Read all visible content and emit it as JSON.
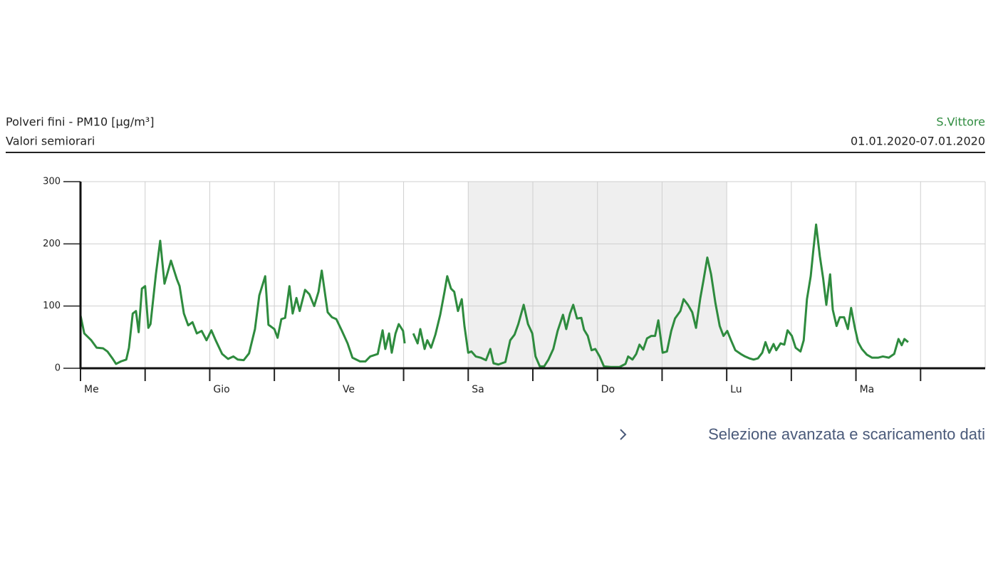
{
  "chart_data": {
    "type": "line",
    "title": "Polveri fini - PM10 [µg/m³]",
    "subtitle": "Valori semiorari",
    "station": "S.Vittore",
    "period": "01.01.2020-07.01.2020",
    "xlim": [
      0,
      168
    ],
    "xticks": [
      {
        "value": 0,
        "label": "Me"
      },
      {
        "value": 24,
        "label": "Gio"
      },
      {
        "value": 48,
        "label": "Ve"
      },
      {
        "value": 72,
        "label": "Sa"
      },
      {
        "value": 96,
        "label": "Do"
      },
      {
        "value": 120,
        "label": "Lu"
      },
      {
        "value": 144,
        "label": "Ma"
      }
    ],
    "xminor_ticks": [
      12,
      36,
      60,
      84,
      108,
      132,
      156
    ],
    "ylim": [
      0,
      300
    ],
    "yticks": [
      0,
      100,
      200,
      300
    ],
    "grid": true,
    "shaded_range": [
      72,
      120
    ],
    "series": [
      {
        "color": "#2e8b3e",
        "x": [
          0,
          0.7,
          2,
          3,
          4.2,
          5,
          6,
          6.6,
          7.5,
          8.5,
          9,
          9.7,
          10.3,
          10.8,
          11.4,
          12,
          12.6,
          13,
          14,
          14.8,
          15.6,
          16.8,
          17.9,
          18.4,
          19.2,
          20,
          20.8,
          21.6,
          22.5,
          23.4,
          24.3,
          25.1,
          26.3,
          27.4,
          28.4,
          29.2,
          30.3,
          31.3,
          32.4,
          33.2,
          34.3,
          34.9,
          36,
          36.6,
          37.3,
          38,
          38.8,
          39.4,
          40.1,
          40.7,
          41.7,
          42.5,
          43.4,
          44.2,
          44.8,
          45.9,
          46.7,
          47.5,
          48.5,
          49.6,
          50.5,
          51.9,
          52.9,
          53.8,
          55.2,
          56.1,
          56.6,
          57.3,
          57.8,
          58.5,
          59.1,
          59.9,
          60.2,
          61,
          61.8,
          62.6,
          63.1,
          63.9,
          64.4,
          65.1,
          65.9,
          66.8,
          67.6,
          68.1,
          68.8,
          69.4,
          70.1,
          70.8,
          71.3,
          72,
          72.6,
          73.4,
          74.3,
          75.3,
          76.1,
          76.7,
          77.6,
          78.9,
          79.8,
          80.6,
          81.3,
          82.3,
          83.1,
          83.9,
          84.5,
          85.3,
          86.1,
          86.9,
          87.8,
          88.6,
          89.6,
          90.2,
          90.9,
          91.5,
          92.2,
          93,
          93.5,
          94.2,
          94.9,
          95.6,
          96.4,
          97.2,
          98.5,
          100.1,
          101.2,
          101.7,
          102.5,
          103.2,
          103.8,
          104.5,
          105.2,
          106,
          106.7,
          107.3,
          108.1,
          108.9,
          109.7,
          110.4,
          111.4,
          112,
          112.8,
          113.6,
          114.3,
          115.1,
          115.7,
          116.4,
          117.1,
          117.9,
          118.7,
          119.4,
          120.1,
          120.8,
          121.6,
          122.6,
          123.4,
          124.2,
          125,
          125.8,
          126.6,
          127.2,
          127.9,
          128.7,
          129.2,
          130,
          130.7,
          131.3,
          132.1,
          132.8,
          133.7,
          134.3,
          134.9,
          135.6,
          136.1,
          136.6,
          137.3,
          137.9,
          138.5,
          139.2,
          139.7,
          140.4,
          141,
          141.8,
          142.5,
          143.1,
          143.8,
          144.4,
          145.1,
          146,
          147,
          148.1,
          149,
          150.1,
          151.1,
          151.9,
          152.5,
          153,
          153.7
        ],
        "values": [
          85,
          56,
          45,
          33,
          32,
          27,
          15,
          7,
          11,
          14,
          33,
          88,
          92,
          58,
          128,
          132,
          65,
          71,
          151,
          205,
          136,
          173,
          143,
          132,
          88,
          69,
          74,
          56,
          60,
          45,
          61,
          45,
          23,
          15,
          19,
          14,
          13,
          24,
          63,
          117,
          148,
          70,
          63,
          49,
          79,
          81,
          132,
          88,
          113,
          92,
          126,
          119,
          100,
          123,
          157,
          90,
          82,
          79,
          61,
          40,
          17,
          11,
          11,
          19,
          23,
          61,
          31,
          56,
          25,
          56,
          71,
          60,
          40,
          null,
          56,
          40,
          63,
          31,
          45,
          33,
          54,
          86,
          123,
          148,
          128,
          123,
          92,
          111,
          68,
          25,
          27,
          19,
          17,
          13,
          31,
          8,
          6,
          10,
          45,
          54,
          71,
          102,
          71,
          56,
          19,
          3,
          3,
          14,
          31,
          60,
          86,
          63,
          88,
          102,
          80,
          81,
          62,
          52,
          29,
          31,
          19,
          3,
          2,
          2,
          7,
          19,
          14,
          23,
          38,
          30,
          48,
          52,
          52,
          77,
          25,
          27,
          60,
          80,
          92,
          111,
          102,
          90,
          65,
          113,
          142,
          178,
          151,
          105,
          68,
          52,
          60,
          45,
          29,
          23,
          19,
          16,
          14,
          16,
          25,
          42,
          25,
          39,
          29,
          40,
          38,
          61,
          52,
          33,
          27,
          45,
          111,
          148,
          191,
          231,
          180,
          145,
          102,
          151,
          94,
          68,
          82,
          82,
          63,
          97,
          65,
          42,
          31,
          22,
          17,
          17,
          19,
          17,
          23,
          47,
          37,
          47,
          42
        ]
      }
    ]
  },
  "link": "Selezione avanzata e scaricamento dati"
}
